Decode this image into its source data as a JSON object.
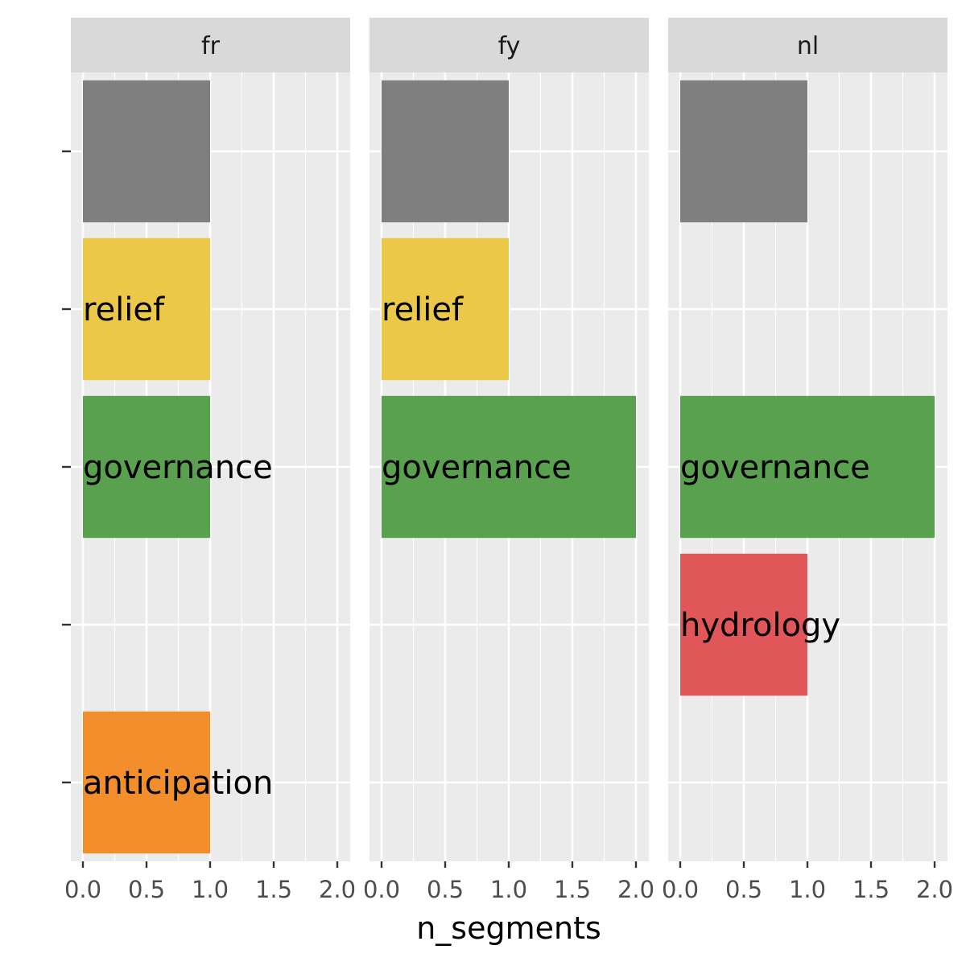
{
  "chart_data": {
    "type": "bar",
    "orientation": "horizontal",
    "facets": [
      "fr",
      "fy",
      "nl"
    ],
    "xlabel": "n_segments",
    "ylabel": "",
    "xlim": [
      0,
      2
    ],
    "x_ticks": [
      "0.0",
      "0.5",
      "1.0",
      "1.5",
      "2.0"
    ],
    "y_slots": 5,
    "grid": true,
    "bars": [
      {
        "facet": "fr",
        "slot": 1,
        "value": 1,
        "label": "",
        "color": "#7f7f7f"
      },
      {
        "facet": "fr",
        "slot": 2,
        "value": 1,
        "label": "relief",
        "color": "#ebc847"
      },
      {
        "facet": "fr",
        "slot": 3,
        "value": 1,
        "label": "governance",
        "color": "#59a14f"
      },
      {
        "facet": "fr",
        "slot": 5,
        "value": 1,
        "label": "anticipation",
        "color": "#f28e2b"
      },
      {
        "facet": "fy",
        "slot": 1,
        "value": 1,
        "label": "",
        "color": "#7f7f7f"
      },
      {
        "facet": "fy",
        "slot": 2,
        "value": 1,
        "label": "relief",
        "color": "#ebc847"
      },
      {
        "facet": "fy",
        "slot": 3,
        "value": 2,
        "label": "governance",
        "color": "#59a14f"
      },
      {
        "facet": "nl",
        "slot": 1,
        "value": 1,
        "label": "",
        "color": "#7f7f7f"
      },
      {
        "facet": "nl",
        "slot": 3,
        "value": 2,
        "label": "governance",
        "color": "#59a14f"
      },
      {
        "facet": "nl",
        "slot": 4,
        "value": 1,
        "label": "hydrology",
        "color": "#e15759"
      }
    ],
    "colors": {
      "panel_bg": "#ebebeb",
      "strip_bg": "#d9d9d9",
      "grid": "#ffffff",
      "tick": "#333333"
    }
  }
}
